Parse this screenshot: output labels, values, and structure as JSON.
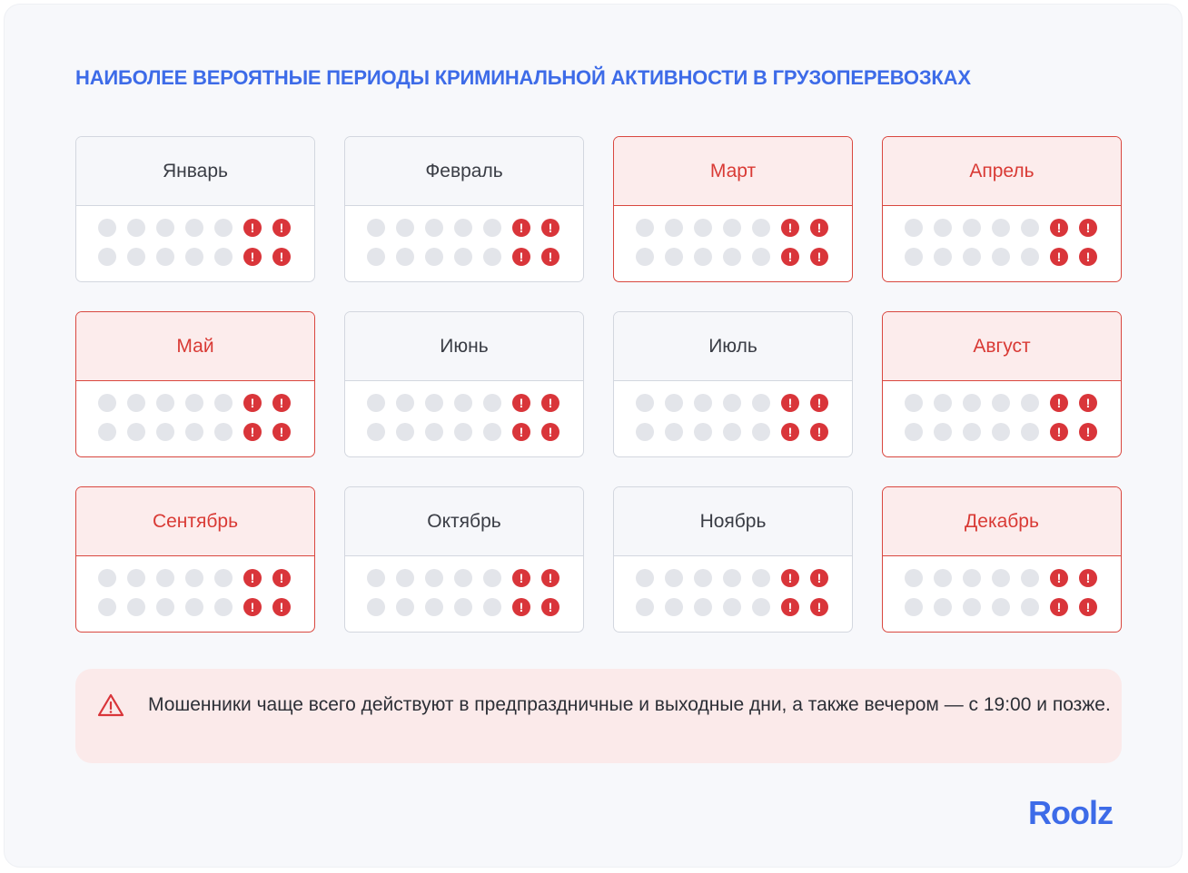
{
  "title": "НАИБОЛЕЕ ВЕРОЯТНЫЕ ПЕРИОДЫ КРИМИНАЛЬНОЙ АКТИВНОСТИ В ГРУЗОПЕРЕВОЗКАХ",
  "colors": {
    "accent": "#3d6be8",
    "alert": "#d9353a",
    "highlight_bg": "#fcecec",
    "dot_gray": "#e3e5ea"
  },
  "alert_icon": "exclamation-icon",
  "alert_glyph": "!",
  "week_layout": {
    "rows": 2,
    "days_per_row": 7,
    "alert_days_per_row": 2
  },
  "months": [
    {
      "name": "Январь",
      "highlighted": false
    },
    {
      "name": "Февраль",
      "highlighted": false
    },
    {
      "name": "Март",
      "highlighted": true
    },
    {
      "name": "Апрель",
      "highlighted": true
    },
    {
      "name": "Май",
      "highlighted": true
    },
    {
      "name": "Июнь",
      "highlighted": false
    },
    {
      "name": "Июль",
      "highlighted": false
    },
    {
      "name": "Август",
      "highlighted": true
    },
    {
      "name": "Сентябрь",
      "highlighted": true
    },
    {
      "name": "Октябрь",
      "highlighted": false
    },
    {
      "name": "Ноябрь",
      "highlighted": false
    },
    {
      "name": "Декабрь",
      "highlighted": true
    }
  ],
  "note": {
    "icon": "warning-triangle-icon",
    "text": "Мошенники чаще всего действуют в предпраздничные и выходные дни, а также вечером — с 19:00 и позже."
  },
  "logo": "Roolz"
}
